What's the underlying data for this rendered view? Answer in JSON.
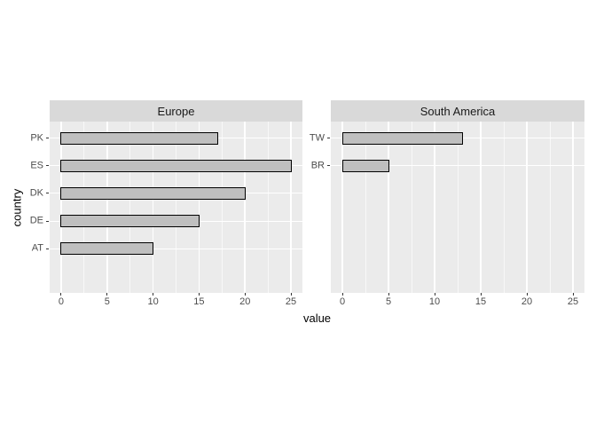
{
  "chart_data": {
    "type": "bar",
    "orientation": "horizontal",
    "title": "",
    "xlabel": "value",
    "ylabel": "country",
    "xlim": [
      0,
      25
    ],
    "x_ticks": [
      0,
      5,
      10,
      15,
      20,
      25
    ],
    "x_minor_ticks": [
      2.5,
      7.5,
      12.5,
      17.5,
      22.5
    ],
    "grid": "on",
    "legend_position": "none",
    "facets": [
      {
        "label": "Europe",
        "categories": [
          "PK",
          "ES",
          "DK",
          "DE",
          "AT"
        ],
        "values": [
          17,
          25,
          20,
          15,
          10
        ]
      },
      {
        "label": "South America",
        "categories": [
          "TW",
          "BR"
        ],
        "values": [
          13,
          5
        ]
      }
    ],
    "colors": {
      "background": "#FFFFFF",
      "panel_bg": "#EBEBEB",
      "strip_bg": "#D9D9D9",
      "strip_text": "#1A1A1A",
      "grid": "#FFFFFF",
      "bar_fill": "#BFBFBF",
      "bar_border": "#000000",
      "tick_text": "#4D4D4D",
      "axis_title": "#000000",
      "tick_mark": "#333333"
    }
  }
}
